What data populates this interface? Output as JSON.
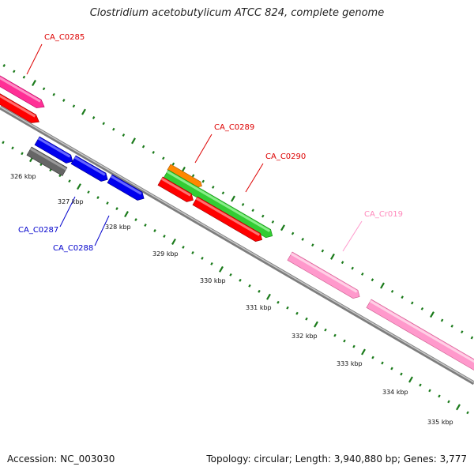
{
  "title": "Clostridium acetobutylicum ATCC 824, complete genome",
  "accession_text": "Accession: NC_003030",
  "summary_text": "Topology: circular; Length: 3,940,880 bp; Genes: 3,777",
  "scale_labels": [
    "326 kbp",
    "327 kbp",
    "328 kbp",
    "329 kbp",
    "330 kbp",
    "331 kbp",
    "332 kbp",
    "333 kbp",
    "334 kbp",
    "335 kbp"
  ],
  "gene_labels": [
    {
      "name": "CA_C0285",
      "color": "#dd0000"
    },
    {
      "name": "CA_C0289",
      "color": "#dd0000"
    },
    {
      "name": "CA_C0290",
      "color": "#dd0000"
    },
    {
      "name": "CA_Cr019",
      "color": "#ff88bb"
    },
    {
      "name": "CA_C0287",
      "color": "#0000cc"
    },
    {
      "name": "CA_C0288",
      "color": "#0000cc"
    }
  ],
  "colors": {
    "backbone": "#8a8a8a",
    "tick": "#1a7a1a",
    "magenta": "#ff3399",
    "red": "#ff0000",
    "blue": "#0000ee",
    "gray_gene": "#666666",
    "orange": "#ff8800",
    "green": "#33cc33",
    "pink": "#ff99cc"
  }
}
